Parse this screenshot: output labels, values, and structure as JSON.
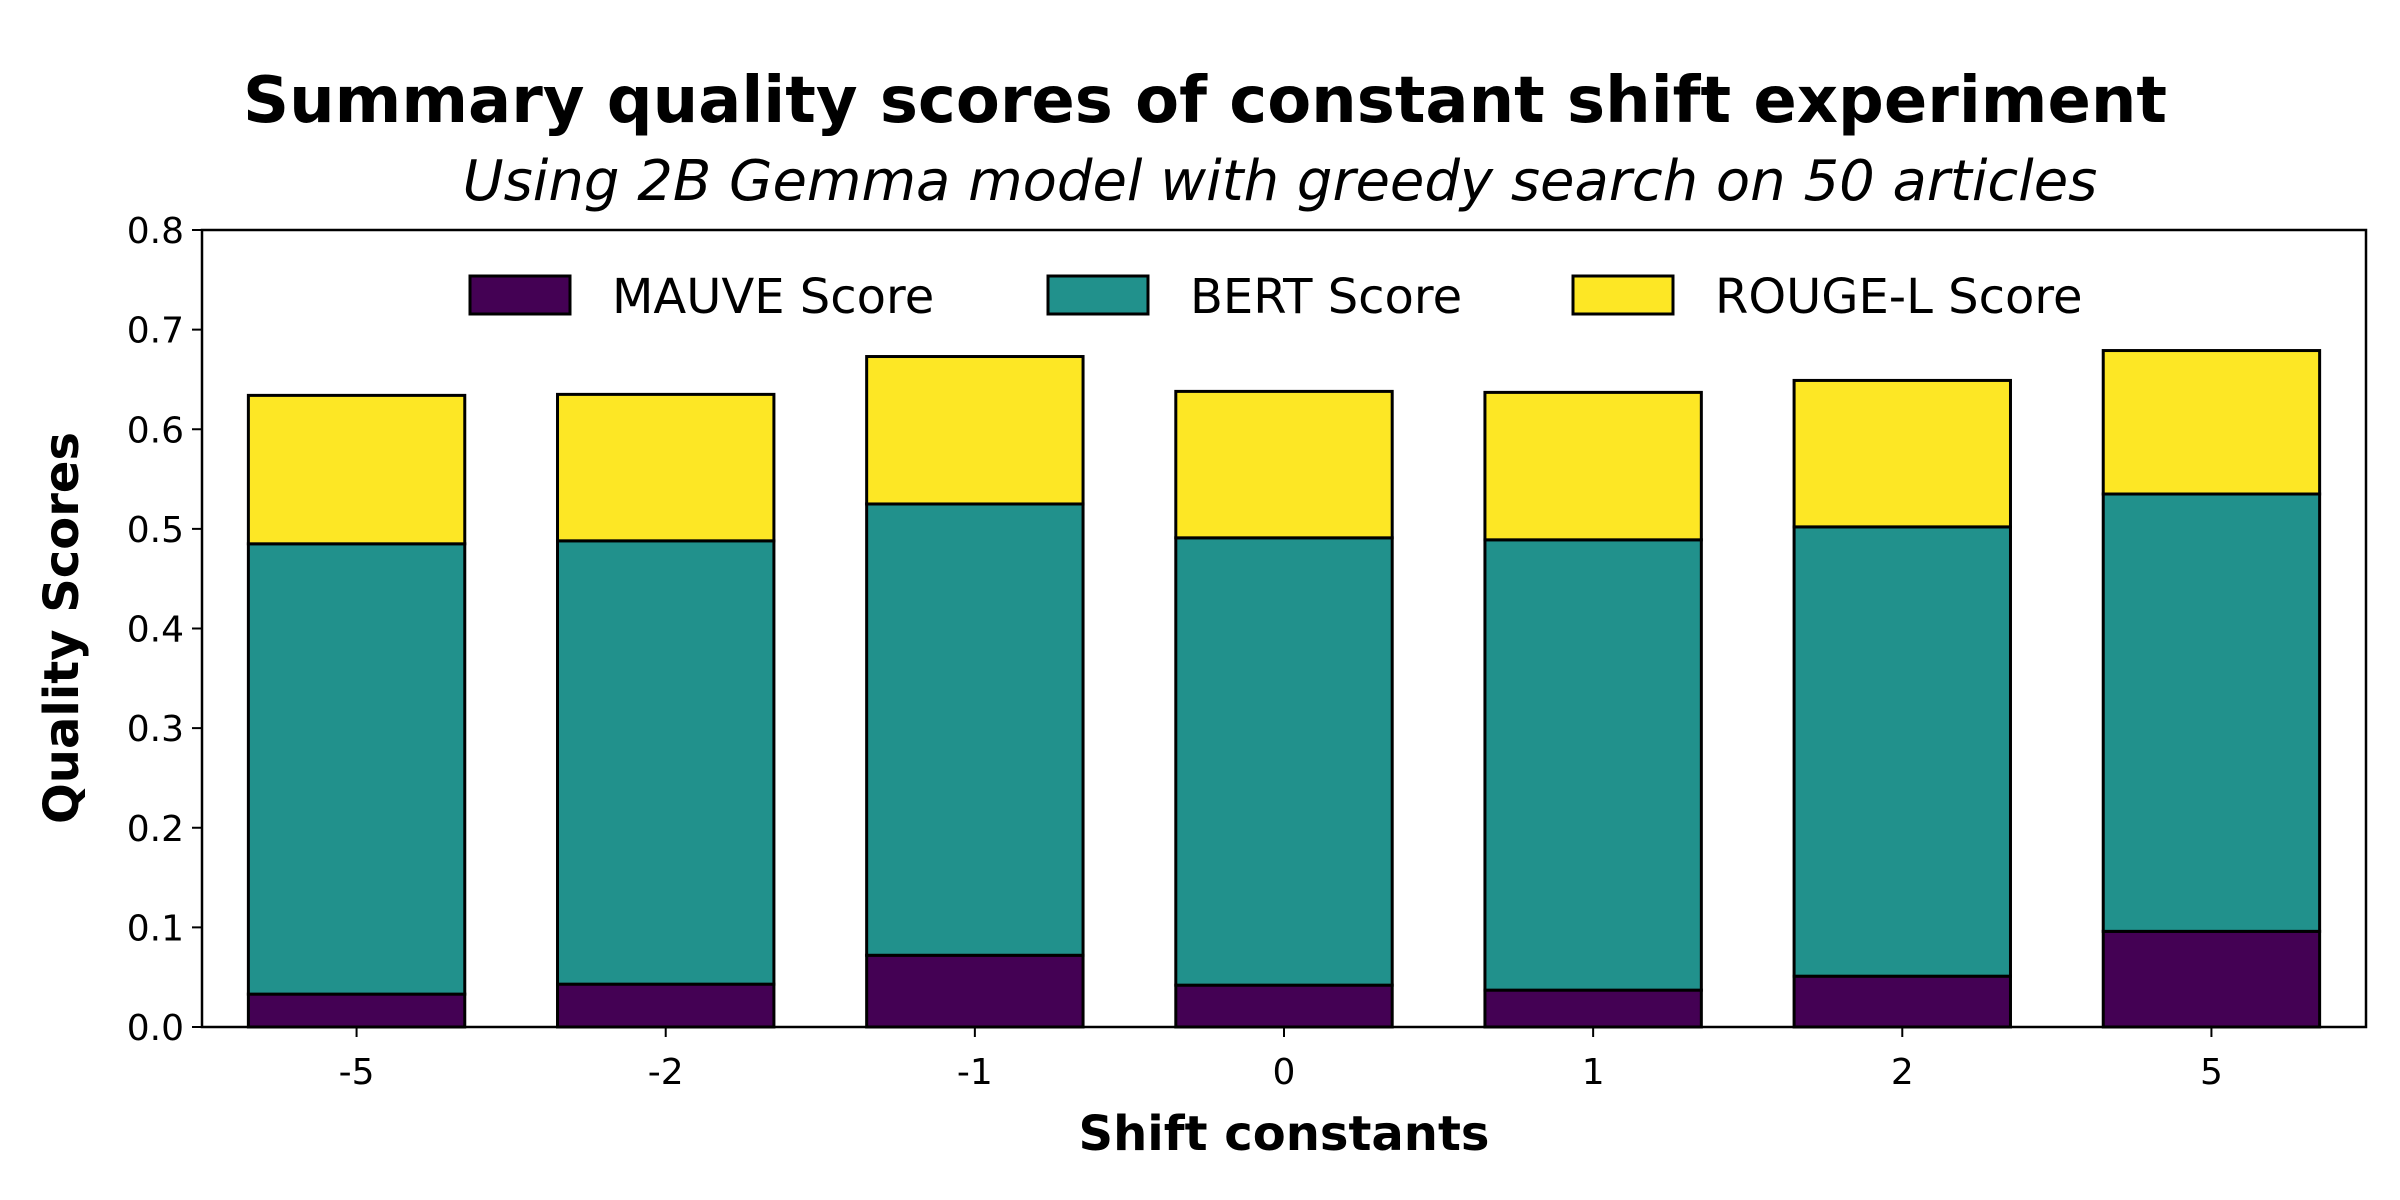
{
  "chart_data": {
    "type": "bar",
    "stacked": true,
    "title": "Summary quality scores of constant shift experiment",
    "subtitle": "Using 2B Gemma model with greedy search on 50 articles",
    "xlabel": "Shift constants",
    "ylabel": "Quality Scores",
    "categories": [
      "-5",
      "-2",
      "-1",
      "0",
      "1",
      "2",
      "5"
    ],
    "ylim": [
      0,
      0.8
    ],
    "yticks": [
      "0.0",
      "0.1",
      "0.2",
      "0.3",
      "0.4",
      "0.5",
      "0.6",
      "0.7",
      "0.8"
    ],
    "grid": false,
    "legend_position": "top-center",
    "series": [
      {
        "name": "MAUVE Score",
        "color": "#440154",
        "values": [
          0.033,
          0.043,
          0.072,
          0.042,
          0.037,
          0.051,
          0.096
        ]
      },
      {
        "name": "BERT Score",
        "color": "#21918c",
        "values": [
          0.452,
          0.445,
          0.453,
          0.449,
          0.452,
          0.451,
          0.439
        ]
      },
      {
        "name": "ROUGE-L Score",
        "color": "#fde725",
        "values": [
          0.149,
          0.147,
          0.148,
          0.147,
          0.148,
          0.147,
          0.144
        ]
      }
    ]
  }
}
